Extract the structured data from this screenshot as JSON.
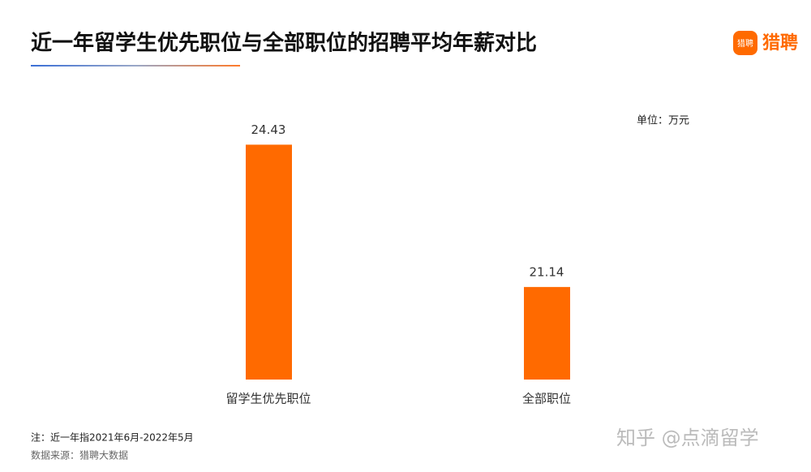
{
  "chart_data": {
    "type": "bar",
    "title": "近一年留学生优先职位与全部职位的招聘平均年薪对比",
    "unit_label": "单位：万元",
    "categories": [
      "留学生优先职位",
      "全部职位"
    ],
    "values": [
      24.43,
      21.14
    ],
    "color": "#ff6a00",
    "ylim": [
      19,
      25
    ],
    "note": "注：近一年指2021年6月-2022年5月",
    "source": "数据来源：猎聘大数据"
  },
  "logo": "猎聘",
  "watermark": "知乎 @点滴留学"
}
